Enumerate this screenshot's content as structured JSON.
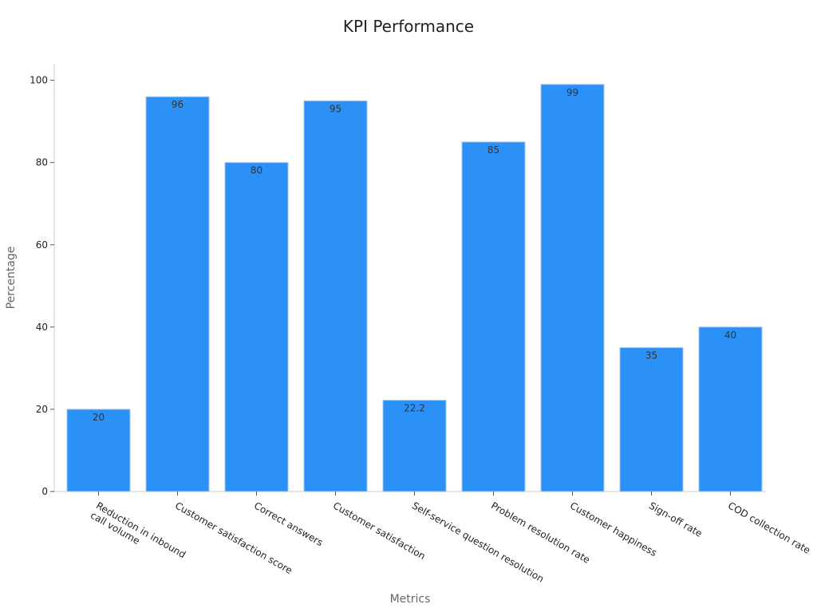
{
  "chart_data": {
    "type": "bar",
    "title": "KPI Performance",
    "xlabel": "Metrics",
    "ylabel": "Percentage",
    "categories": [
      [
        "Reduction in inbound",
        "call volume"
      ],
      [
        "Customer satisfaction score"
      ],
      [
        "Correct answers"
      ],
      [
        "Customer satisfaction"
      ],
      [
        "Self-service question resolution"
      ],
      [
        "Problem resolution rate"
      ],
      [
        "Customer happiness"
      ],
      [
        "Sign-off rate"
      ],
      [
        "COD collection rate"
      ]
    ],
    "values": [
      20,
      96,
      80,
      95,
      22.2,
      85,
      99,
      35,
      40
    ],
    "value_labels": [
      "20",
      "96",
      "80",
      "95",
      "22.2",
      "85",
      "99",
      "35",
      "40"
    ],
    "ylim": [
      0,
      104
    ],
    "yticks": [
      0,
      20,
      40,
      60,
      80,
      100
    ],
    "ytick_labels": [
      "0",
      "20",
      "40",
      "60",
      "80",
      "100"
    ],
    "grid": false,
    "legend": "none",
    "x_tick_rotation": "-30deg",
    "colors": {
      "bar": "#2b91f7",
      "bar_edge": "#a9c6f0"
    }
  }
}
